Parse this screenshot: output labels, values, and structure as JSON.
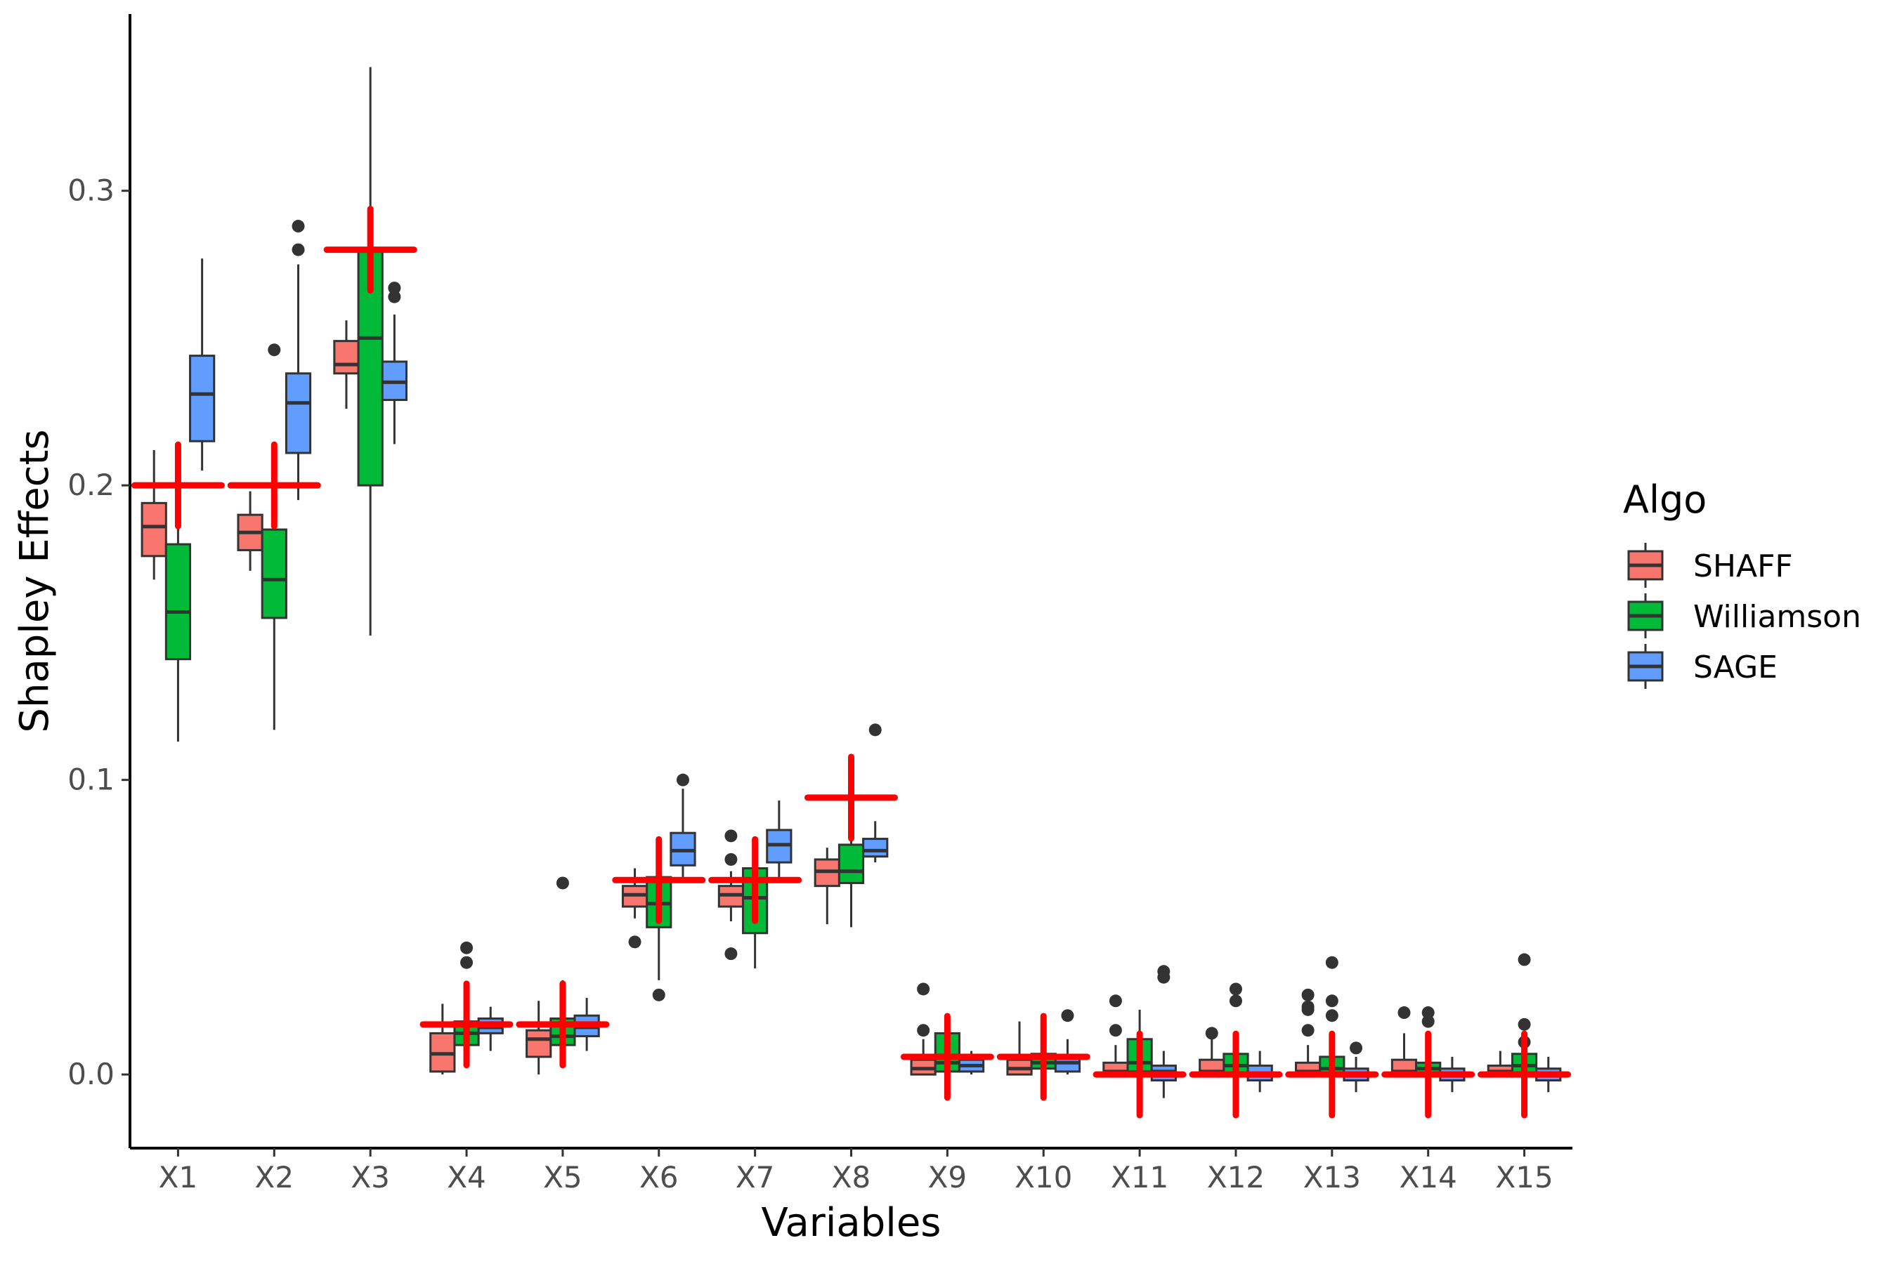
{
  "chart_data": {
    "type": "boxplot",
    "xlabel": "Variables",
    "ylabel": "Shapley Effects",
    "ylim": [
      -0.025,
      0.36
    ],
    "yticks": [
      0.0,
      0.1,
      0.2,
      0.3
    ],
    "ytick_labels": [
      "0.0",
      "0.1",
      "0.2",
      "0.3"
    ],
    "categories": [
      "X1",
      "X2",
      "X3",
      "X4",
      "X5",
      "X6",
      "X7",
      "X8",
      "X9",
      "X10",
      "X11",
      "X12",
      "X13",
      "X14",
      "X15"
    ],
    "legend": {
      "title": "Algo",
      "position": "right",
      "entries": [
        {
          "name": "SHAFF",
          "color": "#F8766D"
        },
        {
          "name": "Williamson",
          "color": "#00BA38"
        },
        {
          "name": "SAGE",
          "color": "#619CFF"
        }
      ]
    },
    "series": [
      {
        "name": "SHAFF",
        "color": "#F8766D",
        "boxes": [
          {
            "q1": 0.176,
            "median": 0.186,
            "q3": 0.194,
            "whisker_low": 0.168,
            "whisker_high": 0.212,
            "outliers": []
          },
          {
            "q1": 0.178,
            "median": 0.184,
            "q3": 0.19,
            "whisker_low": 0.171,
            "whisker_high": 0.198,
            "outliers": []
          },
          {
            "q1": 0.238,
            "median": 0.241,
            "q3": 0.249,
            "whisker_low": 0.226,
            "whisker_high": 0.256,
            "outliers": []
          },
          {
            "q1": 0.001,
            "median": 0.007,
            "q3": 0.014,
            "whisker_low": 0.0,
            "whisker_high": 0.024,
            "outliers": []
          },
          {
            "q1": 0.006,
            "median": 0.012,
            "q3": 0.015,
            "whisker_low": 0.0,
            "whisker_high": 0.025,
            "outliers": []
          },
          {
            "q1": 0.057,
            "median": 0.061,
            "q3": 0.064,
            "whisker_low": 0.053,
            "whisker_high": 0.07,
            "outliers": [
              0.045
            ]
          },
          {
            "q1": 0.057,
            "median": 0.061,
            "q3": 0.064,
            "whisker_low": 0.052,
            "whisker_high": 0.069,
            "outliers": [
              0.081,
              0.073,
              0.041
            ]
          },
          {
            "q1": 0.064,
            "median": 0.069,
            "q3": 0.073,
            "whisker_low": 0.051,
            "whisker_high": 0.077,
            "outliers": []
          },
          {
            "q1": 0.0,
            "median": 0.002,
            "q3": 0.005,
            "whisker_low": 0.0,
            "whisker_high": 0.012,
            "outliers": [
              0.029,
              0.015
            ]
          },
          {
            "q1": 0.0,
            "median": 0.002,
            "q3": 0.005,
            "whisker_low": 0.0,
            "whisker_high": 0.018,
            "outliers": []
          },
          {
            "q1": 0.0,
            "median": 0.001,
            "q3": 0.004,
            "whisker_low": 0.0,
            "whisker_high": 0.01,
            "outliers": [
              0.025,
              0.015
            ]
          },
          {
            "q1": 0.0,
            "median": 0.001,
            "q3": 0.005,
            "whisker_low": 0.0,
            "whisker_high": 0.012,
            "outliers": [
              0.014
            ]
          },
          {
            "q1": 0.0,
            "median": 0.001,
            "q3": 0.004,
            "whisker_low": 0.0,
            "whisker_high": 0.01,
            "outliers": [
              0.027,
              0.023,
              0.022,
              0.015
            ]
          },
          {
            "q1": 0.0,
            "median": 0.001,
            "q3": 0.005,
            "whisker_low": 0.0,
            "whisker_high": 0.014,
            "outliers": [
              0.021
            ]
          },
          {
            "q1": 0.0,
            "median": 0.001,
            "q3": 0.003,
            "whisker_low": 0.0,
            "whisker_high": 0.008,
            "outliers": []
          }
        ]
      },
      {
        "name": "Williamson",
        "color": "#00BA38",
        "boxes": [
          {
            "q1": 0.141,
            "median": 0.157,
            "q3": 0.18,
            "whisker_low": 0.113,
            "whisker_high": 0.2,
            "outliers": []
          },
          {
            "q1": 0.155,
            "median": 0.168,
            "q3": 0.185,
            "whisker_low": 0.117,
            "whisker_high": 0.205,
            "outliers": [
              0.246
            ]
          },
          {
            "q1": 0.2,
            "median": 0.25,
            "q3": 0.28,
            "whisker_low": 0.149,
            "whisker_high": 0.342,
            "outliers": []
          },
          {
            "q1": 0.01,
            "median": 0.014,
            "q3": 0.018,
            "whisker_low": 0.005,
            "whisker_high": 0.022,
            "outliers": [
              0.043,
              0.038
            ]
          },
          {
            "q1": 0.01,
            "median": 0.013,
            "q3": 0.019,
            "whisker_low": 0.004,
            "whisker_high": 0.032,
            "outliers": [
              0.065
            ]
          },
          {
            "q1": 0.05,
            "median": 0.058,
            "q3": 0.067,
            "whisker_low": 0.032,
            "whisker_high": 0.08,
            "outliers": [
              0.027
            ]
          },
          {
            "q1": 0.048,
            "median": 0.06,
            "q3": 0.07,
            "whisker_low": 0.036,
            "whisker_high": 0.08,
            "outliers": []
          },
          {
            "q1": 0.065,
            "median": 0.069,
            "q3": 0.078,
            "whisker_low": 0.05,
            "whisker_high": 0.083,
            "outliers": []
          },
          {
            "q1": 0.001,
            "median": 0.004,
            "q3": 0.014,
            "whisker_low": 0.0,
            "whisker_high": 0.02,
            "outliers": []
          },
          {
            "q1": 0.002,
            "median": 0.004,
            "q3": 0.007,
            "whisker_low": 0.0,
            "whisker_high": 0.015,
            "outliers": []
          },
          {
            "q1": 0.001,
            "median": 0.004,
            "q3": 0.012,
            "whisker_low": 0.0,
            "whisker_high": 0.022,
            "outliers": []
          },
          {
            "q1": 0.0,
            "median": 0.003,
            "q3": 0.007,
            "whisker_low": 0.0,
            "whisker_high": 0.012,
            "outliers": [
              0.029,
              0.025
            ]
          },
          {
            "q1": 0.0,
            "median": 0.002,
            "q3": 0.006,
            "whisker_low": 0.0,
            "whisker_high": 0.012,
            "outliers": [
              0.038,
              0.025,
              0.02
            ]
          },
          {
            "q1": 0.0,
            "median": 0.002,
            "q3": 0.004,
            "whisker_low": 0.0,
            "whisker_high": 0.01,
            "outliers": [
              0.021,
              0.018
            ]
          },
          {
            "q1": 0.0,
            "median": 0.003,
            "q3": 0.007,
            "whisker_low": 0.0,
            "whisker_high": 0.012,
            "outliers": [
              0.039,
              0.017,
              0.011
            ]
          }
        ]
      },
      {
        "name": "SAGE",
        "color": "#619CFF",
        "boxes": [
          {
            "q1": 0.215,
            "median": 0.231,
            "q3": 0.244,
            "whisker_low": 0.205,
            "whisker_high": 0.277,
            "outliers": []
          },
          {
            "q1": 0.211,
            "median": 0.228,
            "q3": 0.238,
            "whisker_low": 0.195,
            "whisker_high": 0.275,
            "outliers": [
              0.288,
              0.28
            ]
          },
          {
            "q1": 0.229,
            "median": 0.235,
            "q3": 0.242,
            "whisker_low": 0.214,
            "whisker_high": 0.258,
            "outliers": [
              0.267,
              0.264
            ]
          },
          {
            "q1": 0.014,
            "median": 0.016,
            "q3": 0.019,
            "whisker_low": 0.008,
            "whisker_high": 0.023,
            "outliers": []
          },
          {
            "q1": 0.013,
            "median": 0.016,
            "q3": 0.02,
            "whisker_low": 0.008,
            "whisker_high": 0.026,
            "outliers": []
          },
          {
            "q1": 0.071,
            "median": 0.076,
            "q3": 0.082,
            "whisker_low": 0.065,
            "whisker_high": 0.097,
            "outliers": [
              0.1
            ]
          },
          {
            "q1": 0.072,
            "median": 0.078,
            "q3": 0.083,
            "whisker_low": 0.067,
            "whisker_high": 0.093,
            "outliers": []
          },
          {
            "q1": 0.074,
            "median": 0.076,
            "q3": 0.08,
            "whisker_low": 0.072,
            "whisker_high": 0.086,
            "outliers": [
              0.117
            ]
          },
          {
            "q1": 0.001,
            "median": 0.003,
            "q3": 0.005,
            "whisker_low": 0.0,
            "whisker_high": 0.008,
            "outliers": []
          },
          {
            "q1": 0.001,
            "median": 0.004,
            "q3": 0.006,
            "whisker_low": 0.0,
            "whisker_high": 0.012,
            "outliers": [
              0.02
            ]
          },
          {
            "q1": -0.002,
            "median": 0.001,
            "q3": 0.003,
            "whisker_low": -0.008,
            "whisker_high": 0.008,
            "outliers": [
              0.035,
              0.033
            ]
          },
          {
            "q1": -0.002,
            "median": 0.0,
            "q3": 0.003,
            "whisker_low": -0.006,
            "whisker_high": 0.008,
            "outliers": []
          },
          {
            "q1": -0.002,
            "median": 0.0,
            "q3": 0.002,
            "whisker_low": -0.006,
            "whisker_high": 0.006,
            "outliers": [
              0.009
            ]
          },
          {
            "q1": -0.002,
            "median": 0.0,
            "q3": 0.002,
            "whisker_low": -0.006,
            "whisker_high": 0.006,
            "outliers": []
          },
          {
            "q1": -0.002,
            "median": 0.0,
            "q3": 0.002,
            "whisker_low": -0.006,
            "whisker_high": 0.006,
            "outliers": []
          }
        ]
      }
    ],
    "reference_crosses": {
      "color": "#FF0000",
      "values": [
        0.2,
        0.2,
        0.28,
        0.017,
        0.017,
        0.066,
        0.066,
        0.094,
        0.006,
        0.006,
        0.0,
        0.0,
        0.0,
        0.0,
        0.0
      ]
    }
  }
}
